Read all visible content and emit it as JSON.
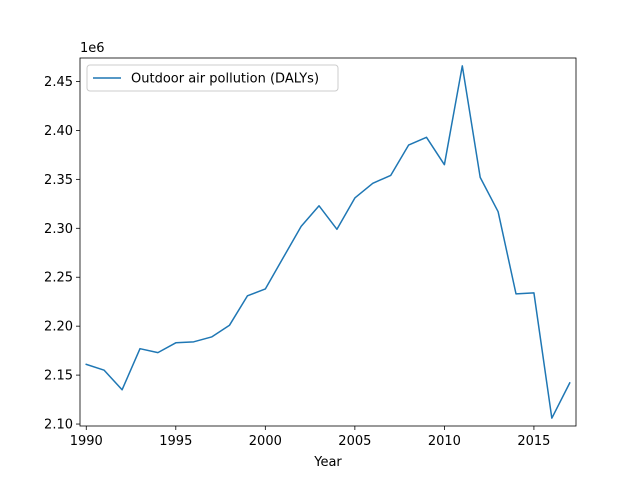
{
  "chart_data": {
    "type": "line",
    "title": "",
    "xlabel": "Year",
    "ylabel": "",
    "y_offset_label": "1e6",
    "xlim": [
      1989.65,
      2017.35
    ],
    "ylim": [
      2.098,
      2.474
    ],
    "xticks": [
      1990,
      1995,
      2000,
      2005,
      2010,
      2015
    ],
    "yticks": [
      "2.10",
      "2.15",
      "2.20",
      "2.25",
      "2.30",
      "2.35",
      "2.40",
      "2.45"
    ],
    "grid": false,
    "legend_position": "upper-left",
    "series": [
      {
        "name": "Outdoor air pollution (DALYs)",
        "color": "#1f77b4",
        "x": [
          1990,
          1991,
          1992,
          1993,
          1994,
          1995,
          1996,
          1997,
          1998,
          1999,
          2000,
          2001,
          2002,
          2003,
          2004,
          2005,
          2006,
          2007,
          2008,
          2009,
          2010,
          2011,
          2012,
          2013,
          2014,
          2015,
          2016,
          2017
        ],
        "y": [
          2.161,
          2.155,
          2.135,
          2.177,
          2.173,
          2.183,
          2.184,
          2.189,
          2.201,
          2.231,
          2.238,
          2.27,
          2.302,
          2.323,
          2.299,
          2.331,
          2.346,
          2.354,
          2.385,
          2.393,
          2.365,
          2.466,
          2.352,
          2.317,
          2.233,
          2.234,
          2.106,
          2.142
        ]
      }
    ]
  }
}
